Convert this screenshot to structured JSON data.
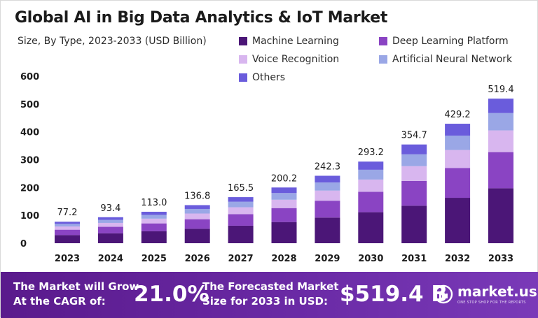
{
  "chart_data": {
    "type": "bar",
    "stacked": true,
    "title": "Global AI in Big Data Analytics & IoT Market",
    "subtitle": "Size, By Type, 2023-2033 (USD Billion)",
    "categories": [
      "2023",
      "2024",
      "2025",
      "2026",
      "2027",
      "2028",
      "2029",
      "2030",
      "2031",
      "2032",
      "2033"
    ],
    "totals": [
      "77.2",
      "93.4",
      "113.0",
      "136.8",
      "165.5",
      "200.2",
      "242.3",
      "293.2",
      "354.7",
      "429.2",
      "519.4"
    ],
    "series": [
      {
        "name": "Machine Learning",
        "color": "#4b1677",
        "values": [
          29.3,
          35.5,
          42.9,
          52.0,
          62.9,
          76.1,
          92.1,
          111.4,
          134.8,
          163.1,
          197.4
        ]
      },
      {
        "name": "Deep Learning Platform",
        "color": "#8a44c3",
        "values": [
          19.3,
          23.4,
          28.3,
          34.2,
          41.4,
          50.1,
          60.6,
          73.3,
          88.7,
          107.3,
          129.9
        ]
      },
      {
        "name": "Voice Recognition",
        "color": "#d8b6ef",
        "values": [
          11.6,
          14.0,
          17.0,
          20.5,
          24.8,
          30.0,
          36.3,
          44.0,
          53.2,
          64.4,
          77.9
        ]
      },
      {
        "name": "Artificial Neural Network",
        "color": "#9aa7e6",
        "values": [
          9.3,
          11.2,
          13.6,
          16.4,
          19.9,
          24.0,
          29.1,
          35.2,
          42.6,
          51.5,
          62.3
        ]
      },
      {
        "name": "Others",
        "color": "#6a5cdc",
        "values": [
          7.7,
          9.3,
          11.2,
          13.7,
          16.5,
          20.0,
          24.2,
          29.3,
          35.4,
          42.9,
          51.9
        ]
      }
    ],
    "yticks": [
      "0",
      "100",
      "200",
      "300",
      "400",
      "500",
      "600"
    ],
    "ylim": [
      0,
      600
    ],
    "grid": false,
    "legend_position": "top-right"
  },
  "banner": {
    "cagr_label_line1": "The Market will Grow",
    "cagr_label_line2": "At the CAGR of:",
    "cagr_value": "21.0%",
    "forecast_label_line1": "The Forecasted Market",
    "forecast_label_line2": "Size for 2033 in USD:",
    "forecast_value": "$519.4 B",
    "logo_text": "market.us",
    "logo_tagline": "ONE STOP SHOP FOR THE REPORTS"
  }
}
